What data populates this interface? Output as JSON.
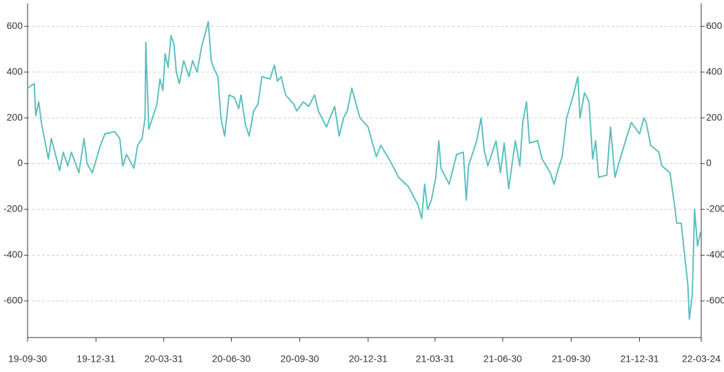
{
  "chart_data": {
    "type": "line",
    "x": [
      "19-09-30",
      "19-10-09",
      "19-10-11",
      "19-10-15",
      "19-10-19",
      "19-10-28",
      "19-11-01",
      "19-11-12",
      "19-11-17",
      "19-11-23",
      "19-11-28",
      "19-12-08",
      "19-12-15",
      "19-12-19",
      "19-12-26",
      "20-01-06",
      "20-01-12",
      "20-01-25",
      "20-02-01",
      "20-02-05",
      "20-02-10",
      "20-02-20",
      "20-02-25",
      "20-03-02",
      "20-03-06",
      "20-03-07",
      "20-03-11",
      "20-03-22",
      "20-03-26",
      "20-03-30",
      "20-04-02",
      "20-04-06",
      "20-04-10",
      "20-04-14",
      "20-04-17",
      "20-04-21",
      "20-04-27",
      "20-05-04",
      "20-05-09",
      "20-05-15",
      "20-05-21",
      "20-05-26",
      "20-05-30",
      "20-06-03",
      "20-06-06",
      "20-06-12",
      "20-06-16",
      "20-06-21",
      "20-06-27",
      "20-07-04",
      "20-07-10",
      "20-07-13",
      "20-07-19",
      "20-07-24",
      "20-07-30",
      "20-08-05",
      "20-08-10",
      "20-08-21",
      "20-08-27",
      "20-08-31",
      "20-09-05",
      "20-09-11",
      "20-09-22",
      "20-09-26",
      "20-10-05",
      "20-10-12",
      "20-10-20",
      "20-10-25",
      "20-11-05",
      "20-11-11",
      "20-11-16",
      "20-11-22",
      "20-11-28",
      "20-12-03",
      "20-12-09",
      "20-12-14",
      "20-12-20",
      "20-12-31",
      "21-01-05",
      "21-01-11",
      "21-01-17",
      "21-01-30",
      "21-02-10",
      "21-02-23",
      "21-03-08",
      "21-03-13",
      "21-03-17",
      "21-03-21",
      "21-03-26",
      "21-04-01",
      "21-04-05",
      "21-04-08",
      "21-04-19",
      "21-04-29",
      "21-05-08",
      "21-05-12",
      "21-05-15",
      "21-05-26",
      "21-06-01",
      "21-06-05",
      "21-06-10",
      "21-06-21",
      "21-06-27",
      "21-07-02",
      "21-07-08",
      "21-07-17",
      "21-07-23",
      "21-07-27",
      "21-08-01",
      "21-08-05",
      "21-08-16",
      "21-08-22",
      "21-09-02",
      "21-09-07",
      "21-09-13",
      "21-09-18",
      "21-09-24",
      "21-10-03",
      "21-10-09",
      "21-10-12",
      "21-10-18",
      "21-10-24",
      "21-10-29",
      "21-11-02",
      "21-11-06",
      "21-11-17",
      "21-11-22",
      "21-11-28",
      "21-12-03",
      "21-12-15",
      "21-12-20",
      "21-12-31",
      "22-01-06",
      "22-01-09",
      "22-01-15",
      "22-01-26",
      "22-01-30",
      "22-02-10",
      "22-02-16",
      "22-02-19",
      "22-02-25",
      "22-03-02",
      "22-03-06",
      "22-03-08",
      "22-03-12",
      "22-03-15",
      "22-03-19",
      "22-03-23"
    ],
    "series": [
      {
        "color": "#5bbfbf",
        "values": [
          330,
          350,
          210,
          270,
          170,
          20,
          110,
          -30,
          50,
          -10,
          50,
          -40,
          110,
          0,
          -40,
          80,
          130,
          140,
          110,
          -10,
          40,
          -20,
          80,
          110,
          200,
          530,
          150,
          260,
          370,
          320,
          480,
          420,
          560,
          520,
          400,
          350,
          450,
          380,
          450,
          400,
          510,
          570,
          620,
          450,
          420,
          380,
          200,
          120,
          300,
          290,
          240,
          300,
          170,
          120,
          230,
          260,
          380,
          370,
          430,
          360,
          380,
          300,
          260,
          230,
          270,
          250,
          300,
          230,
          160,
          210,
          250,
          120,
          200,
          230,
          330,
          270,
          200,
          160,
          100,
          30,
          80,
          10,
          -60,
          -100,
          -180,
          -240,
          -90,
          -200,
          -160,
          -60,
          100,
          -20,
          -90,
          40,
          50,
          -160,
          -10,
          100,
          200,
          60,
          -10,
          100,
          -40,
          90,
          -110,
          100,
          -10,
          180,
          270,
          90,
          100,
          20,
          -40,
          -90,
          -20,
          30,
          200,
          300,
          380,
          200,
          310,
          270,
          20,
          100,
          -60,
          -50,
          160,
          -60,
          0,
          130,
          180,
          130,
          200,
          180,
          80,
          50,
          -10,
          -40,
          -180,
          -260,
          -260,
          -410,
          -530,
          -680,
          -570,
          -200,
          -360,
          -300
        ]
      }
    ],
    "xlim": [
      "19-09-30",
      "22-03-24"
    ],
    "xticks": [
      "19-09-30",
      "19-12-31",
      "20-03-31",
      "20-06-30",
      "20-09-30",
      "20-12-31",
      "21-03-31",
      "21-06-30",
      "21-09-30",
      "21-12-31",
      "22-03-24"
    ],
    "ylim": [
      -760,
      700
    ],
    "yticks": [
      -600,
      -400,
      -200,
      0,
      200,
      400,
      600
    ],
    "grid": true
  }
}
